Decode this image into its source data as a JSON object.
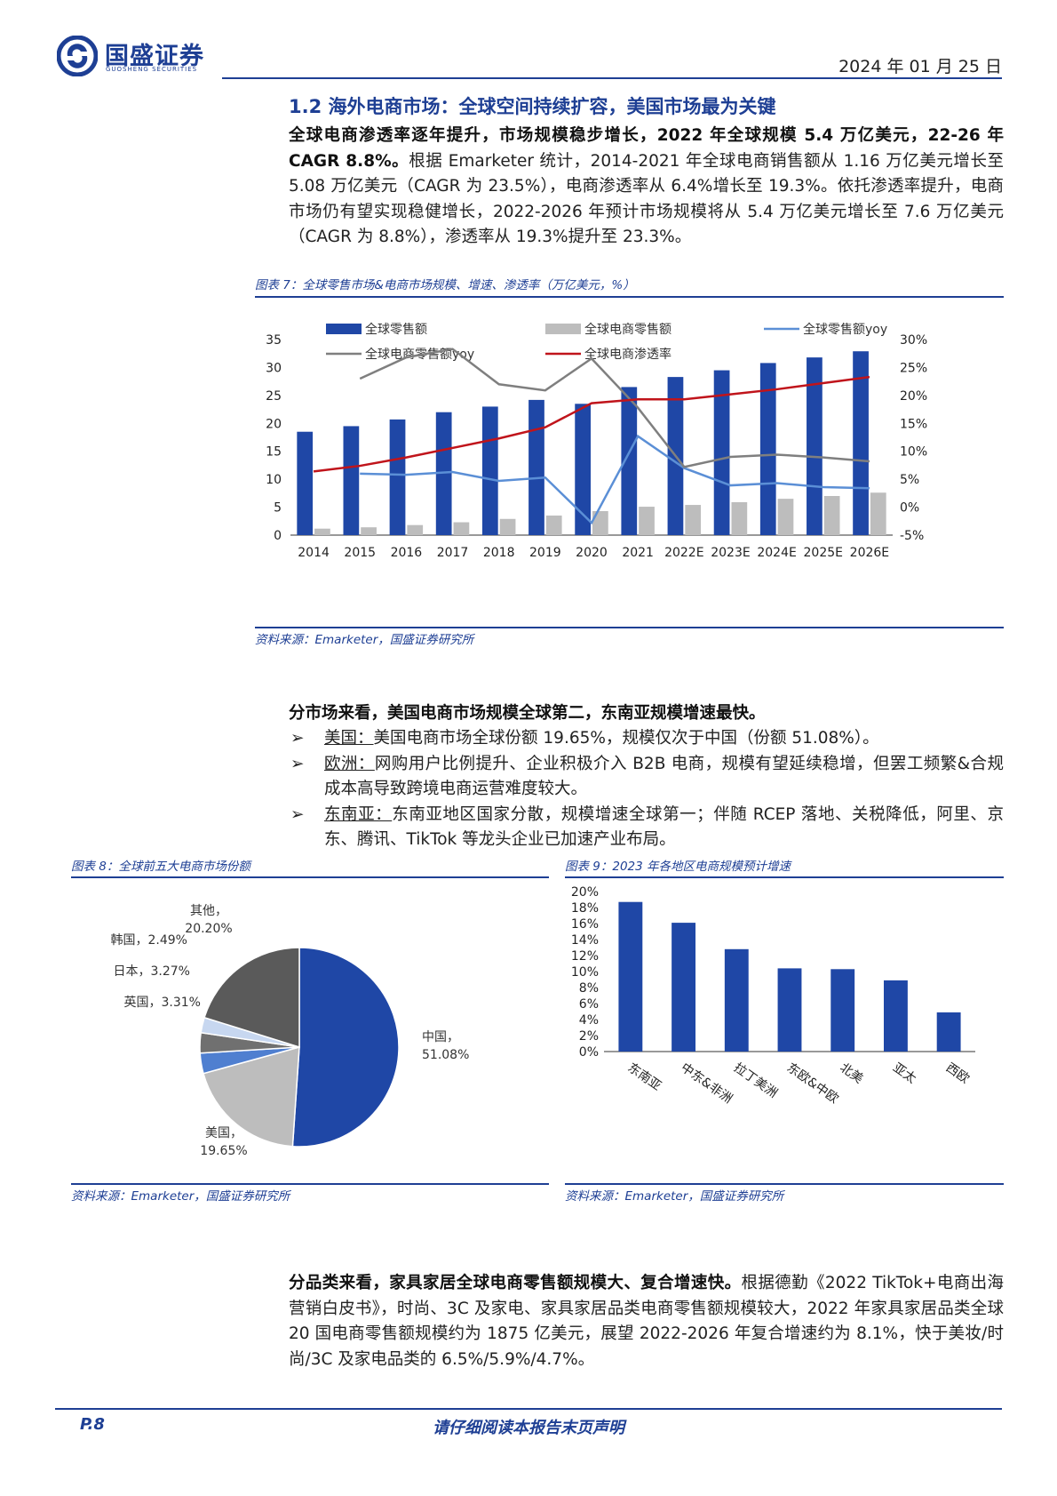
{
  "header": {
    "company_cn": "国盛证券",
    "company_en": "GUOSHENG SECURITIES",
    "date": "2024 年 01 月 25 日"
  },
  "section": {
    "title": "1.2 海外电商市场：全球空间持续扩容，美国市场最为关键"
  },
  "para1": {
    "bold": "全球电商渗透率逐年提升，市场规模稳步增长，2022 年全球规模 5.4 万亿美元，22-26 年 CAGR 8.8%。",
    "text": "根据 Emarketer 统计，2014-2021 年全球电商销售额从 1.16 万亿美元增长至 5.08 万亿美元（CAGR 为 23.5%），电商渗透率从 6.4%增长至 19.3%。依托渗透率提升，电商市场仍有望实现稳健增长，2022-2026 年预计市场规模将从 5.4 万亿美元增长至 7.6 万亿美元（CAGR 为 8.8%），渗透率从 19.3%提升至 23.3%。"
  },
  "fig7": {
    "title": "图表 7：全球零售市场&电商市场规模、增速、渗透率（万亿美元，%）",
    "source": "资料来源：Emarketer，国盛证券研究所",
    "legend": [
      "全球零售额",
      "全球电商零售额",
      "全球零售额yoy",
      "全球电商零售额yoy",
      "全球电商渗透率"
    ],
    "colors": {
      "retail": "#1f47a6",
      "ecom": "#bdbdbd",
      "retail_yoy": "#5b8fd6",
      "ecom_yoy": "#7f7f7f",
      "penetration": "#c0141b"
    }
  },
  "para2": {
    "bold": "分市场来看，美国电商市场规模全球第二，东南亚规模增速最快。"
  },
  "bullets": [
    {
      "marker": "➢",
      "label": "美国：",
      "text": "美国电商市场全球份额 19.65%，规模仅次于中国（份额 51.08%）。"
    },
    {
      "marker": "➢",
      "label": "欧洲：",
      "text": "网购用户比例提升、企业积极介入 B2B 电商，规模有望延续稳增，但罢工频繁&合规成本高导致跨境电商运营难度较大。"
    },
    {
      "marker": "➢",
      "label": "东南亚：",
      "text": "东南亚地区国家分散，规模增速全球第一；伴随 RCEP 落地、关税降低，阿里、京东、腾讯、TikTok 等龙头企业已加速产业布局。"
    }
  ],
  "fig8": {
    "title": "图表 8：全球前五大电商市场份额",
    "source": "资料来源：Emarketer，国盛证券研究所"
  },
  "fig9": {
    "title": "图表 9：2023 年各地区电商规模预计增速",
    "source": "资料来源：Emarketer，国盛证券研究所"
  },
  "para3": {
    "bold": "分品类来看，家具家居全球电商零售额规模大、复合增速快。",
    "text": "根据德勤《2022 TikTok+电商出海营销白皮书》，时尚、3C 及家电、家具家居品类电商零售额规模较大，2022 年家具家居品类全球 20 国电商零售额规模约为 1875 亿美元，展望 2022-2026 年复合增速约为 8.1%，快于美妆/时尚/3C 及家电品类的 6.5%/5.9%/4.7%。"
  },
  "footer": {
    "page": "P.8",
    "note": "请仔细阅读本报告末页声明"
  },
  "chart_data": [
    {
      "type": "bar",
      "categories": [
        "2014",
        "2015",
        "2016",
        "2017",
        "2018",
        "2019",
        "2020",
        "2021",
        "2022E",
        "2023E",
        "2024E",
        "2025E",
        "2026E"
      ],
      "series": [
        {
          "name": "全球零售额",
          "kind": "bar",
          "axis": "left",
          "values": [
            18.5,
            19.5,
            20.7,
            22.0,
            23.0,
            24.2,
            23.5,
            26.5,
            28.3,
            29.5,
            30.8,
            31.8,
            32.9
          ]
        },
        {
          "name": "全球电商零售额",
          "kind": "bar",
          "axis": "left",
          "values": [
            1.16,
            1.4,
            1.8,
            2.3,
            2.9,
            3.5,
            4.3,
            5.08,
            5.4,
            5.9,
            6.5,
            7.0,
            7.6
          ]
        },
        {
          "name": "全球零售额yoy",
          "kind": "line",
          "axis": "right",
          "values": [
            null,
            6.0,
            5.8,
            6.3,
            4.7,
            5.3,
            -2.8,
            12.7,
            7.0,
            3.9,
            4.3,
            3.6,
            3.4
          ]
        },
        {
          "name": "全球电商零售额yoy",
          "kind": "line",
          "axis": "right",
          "values": [
            null,
            23.0,
            26.8,
            28.3,
            22.0,
            20.9,
            26.6,
            17.8,
            7.2,
            9.0,
            9.4,
            8.9,
            8.2
          ]
        },
        {
          "name": "全球电商渗透率",
          "kind": "line",
          "axis": "right",
          "values": [
            6.4,
            7.4,
            8.9,
            10.6,
            12.3,
            14.3,
            18.6,
            19.3,
            19.3,
            20.2,
            21.1,
            22.2,
            23.3
          ]
        }
      ],
      "ylim": [
        0,
        35
      ],
      "yticks": [
        0,
        5,
        10,
        15,
        20,
        25,
        30,
        35
      ],
      "y2lim": [
        -5,
        30
      ],
      "y2ticks": [
        "-5%",
        "0%",
        "5%",
        "10%",
        "15%",
        "20%",
        "25%",
        "30%"
      ],
      "legend": "top"
    },
    {
      "type": "pie",
      "labels": [
        "中国",
        "美国",
        "英国",
        "日本",
        "韩国",
        "其他"
      ],
      "values": [
        51.08,
        19.65,
        3.31,
        3.27,
        2.49,
        20.2
      ],
      "value_labels": [
        "51.08%",
        "19.65%",
        "3.31%",
        "3.27%",
        "2.49%",
        "20.20%"
      ],
      "colors": [
        "#1f47a6",
        "#bdbdbd",
        "#4f7fd0",
        "#707070",
        "#c7d7f0",
        "#5a5a5a"
      ]
    },
    {
      "type": "bar",
      "categories": [
        "东南亚",
        "中东&非洲",
        "拉丁美洲",
        "东欧&中欧",
        "北美",
        "亚太",
        "西欧"
      ],
      "values": [
        18.7,
        16.1,
        12.8,
        10.4,
        10.3,
        8.9,
        4.9
      ],
      "ylim": [
        0,
        20
      ],
      "yticks": [
        "0%",
        "2%",
        "4%",
        "6%",
        "8%",
        "10%",
        "12%",
        "14%",
        "16%",
        "18%",
        "20%"
      ],
      "color": "#1f47a6"
    }
  ]
}
